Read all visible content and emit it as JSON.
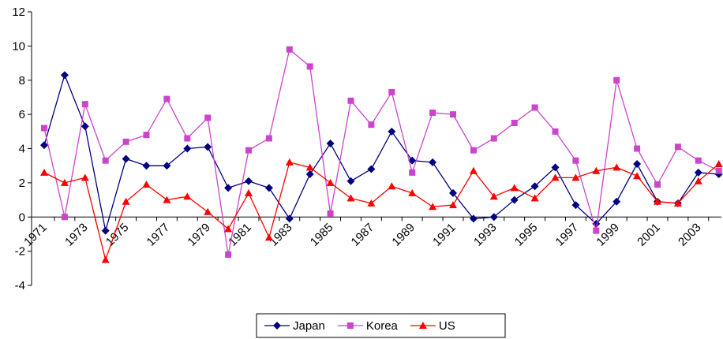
{
  "chart_data": {
    "type": "line",
    "categories": [
      "1971",
      null,
      "1973",
      null,
      "1975",
      null,
      "1977",
      null,
      "1979",
      null,
      "1981",
      null,
      "1983",
      null,
      "1985",
      null,
      "1987",
      null,
      "1989",
      null,
      "1991",
      null,
      "1993",
      null,
      "1995",
      null,
      "1997",
      null,
      "1999",
      null,
      "2001",
      null,
      "2003",
      null
    ],
    "series": [
      {
        "name": "Japan",
        "color": "#000080",
        "marker": "diamond",
        "values": [
          4.2,
          8.3,
          5.3,
          -0.8,
          3.4,
          3.0,
          3.0,
          4.0,
          4.1,
          1.7,
          2.1,
          1.7,
          -0.1,
          2.5,
          4.3,
          2.1,
          2.8,
          5.0,
          3.3,
          3.2,
          1.4,
          -0.1,
          0.0,
          1.0,
          1.8,
          2.9,
          0.7,
          -0.4,
          0.9,
          3.1,
          0.9,
          0.8,
          2.6,
          2.5
        ]
      },
      {
        "name": "Korea",
        "color": "#cc44cc",
        "marker": "square",
        "values": [
          5.2,
          0.0,
          6.6,
          3.3,
          4.4,
          4.8,
          6.9,
          4.6,
          5.8,
          -2.2,
          3.9,
          4.6,
          9.8,
          8.8,
          0.2,
          6.8,
          5.4,
          7.3,
          2.6,
          6.1,
          6.0,
          3.9,
          4.6,
          5.5,
          6.4,
          5.0,
          3.3,
          -0.8,
          8.0,
          4.0,
          1.9,
          4.1,
          3.3,
          2.7
        ]
      },
      {
        "name": "US",
        "color": "#ff0000",
        "marker": "triangle",
        "values": [
          2.6,
          2.0,
          2.3,
          -2.5,
          0.9,
          1.9,
          1.0,
          1.2,
          0.3,
          -0.7,
          1.4,
          -1.2,
          3.2,
          2.9,
          2.0,
          1.1,
          0.8,
          1.8,
          1.4,
          0.6,
          0.7,
          2.7,
          1.2,
          1.7,
          1.1,
          2.3,
          2.3,
          2.7,
          2.9,
          2.4,
          0.9,
          0.8,
          2.1,
          3.1
        ]
      }
    ],
    "ylim": [
      -4,
      12
    ],
    "yticks": [
      -4,
      -2,
      0,
      2,
      4,
      6,
      8,
      10,
      12
    ]
  }
}
